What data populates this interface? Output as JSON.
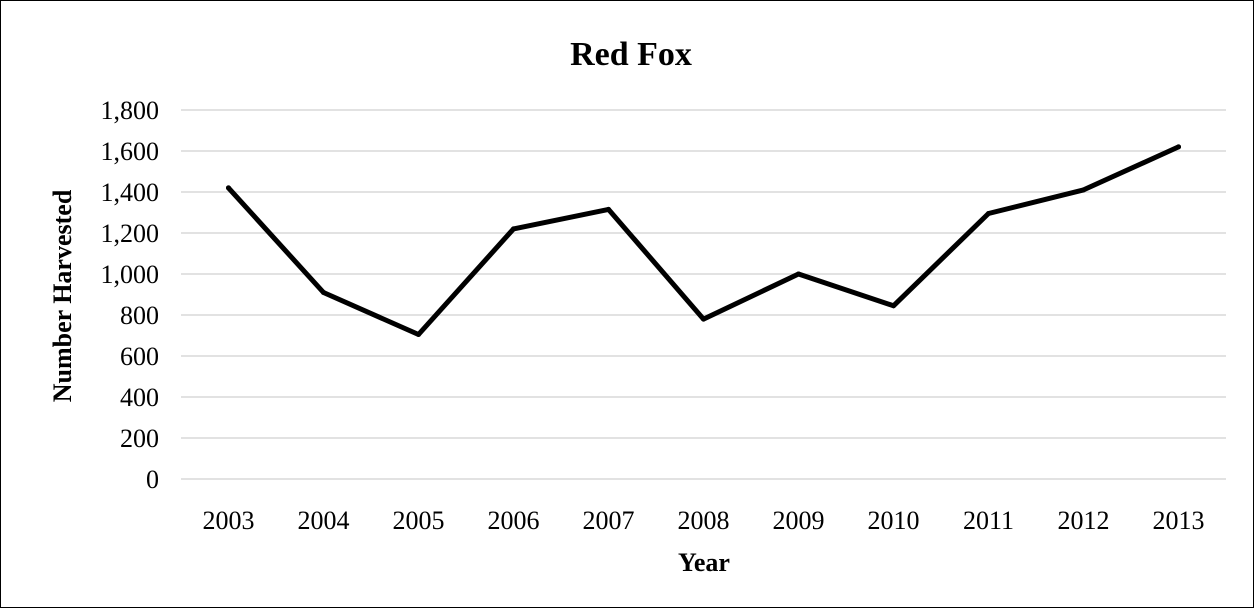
{
  "chart_data": {
    "type": "line",
    "title": "Red Fox",
    "xlabel": "Year",
    "ylabel": "Number Harvested",
    "categories": [
      "2003",
      "2004",
      "2005",
      "2006",
      "2007",
      "2008",
      "2009",
      "2010",
      "2011",
      "2012",
      "2013"
    ],
    "series": [
      {
        "values": [
          1420,
          910,
          705,
          1220,
          1315,
          780,
          1000,
          845,
          1295,
          1410,
          1620
        ]
      }
    ],
    "ylim": [
      0,
      1800
    ],
    "yticks": [
      0,
      200,
      400,
      600,
      800,
      1000,
      1200,
      1400,
      1600,
      1800
    ],
    "ytick_labels": [
      "0",
      "200",
      "400",
      "600",
      "800",
      "1,000",
      "1,200",
      "1,400",
      "1,600",
      "1,800"
    ],
    "grid": true,
    "legend": "none",
    "line_color": "#000000",
    "grid_color": "#d9d9d9"
  }
}
